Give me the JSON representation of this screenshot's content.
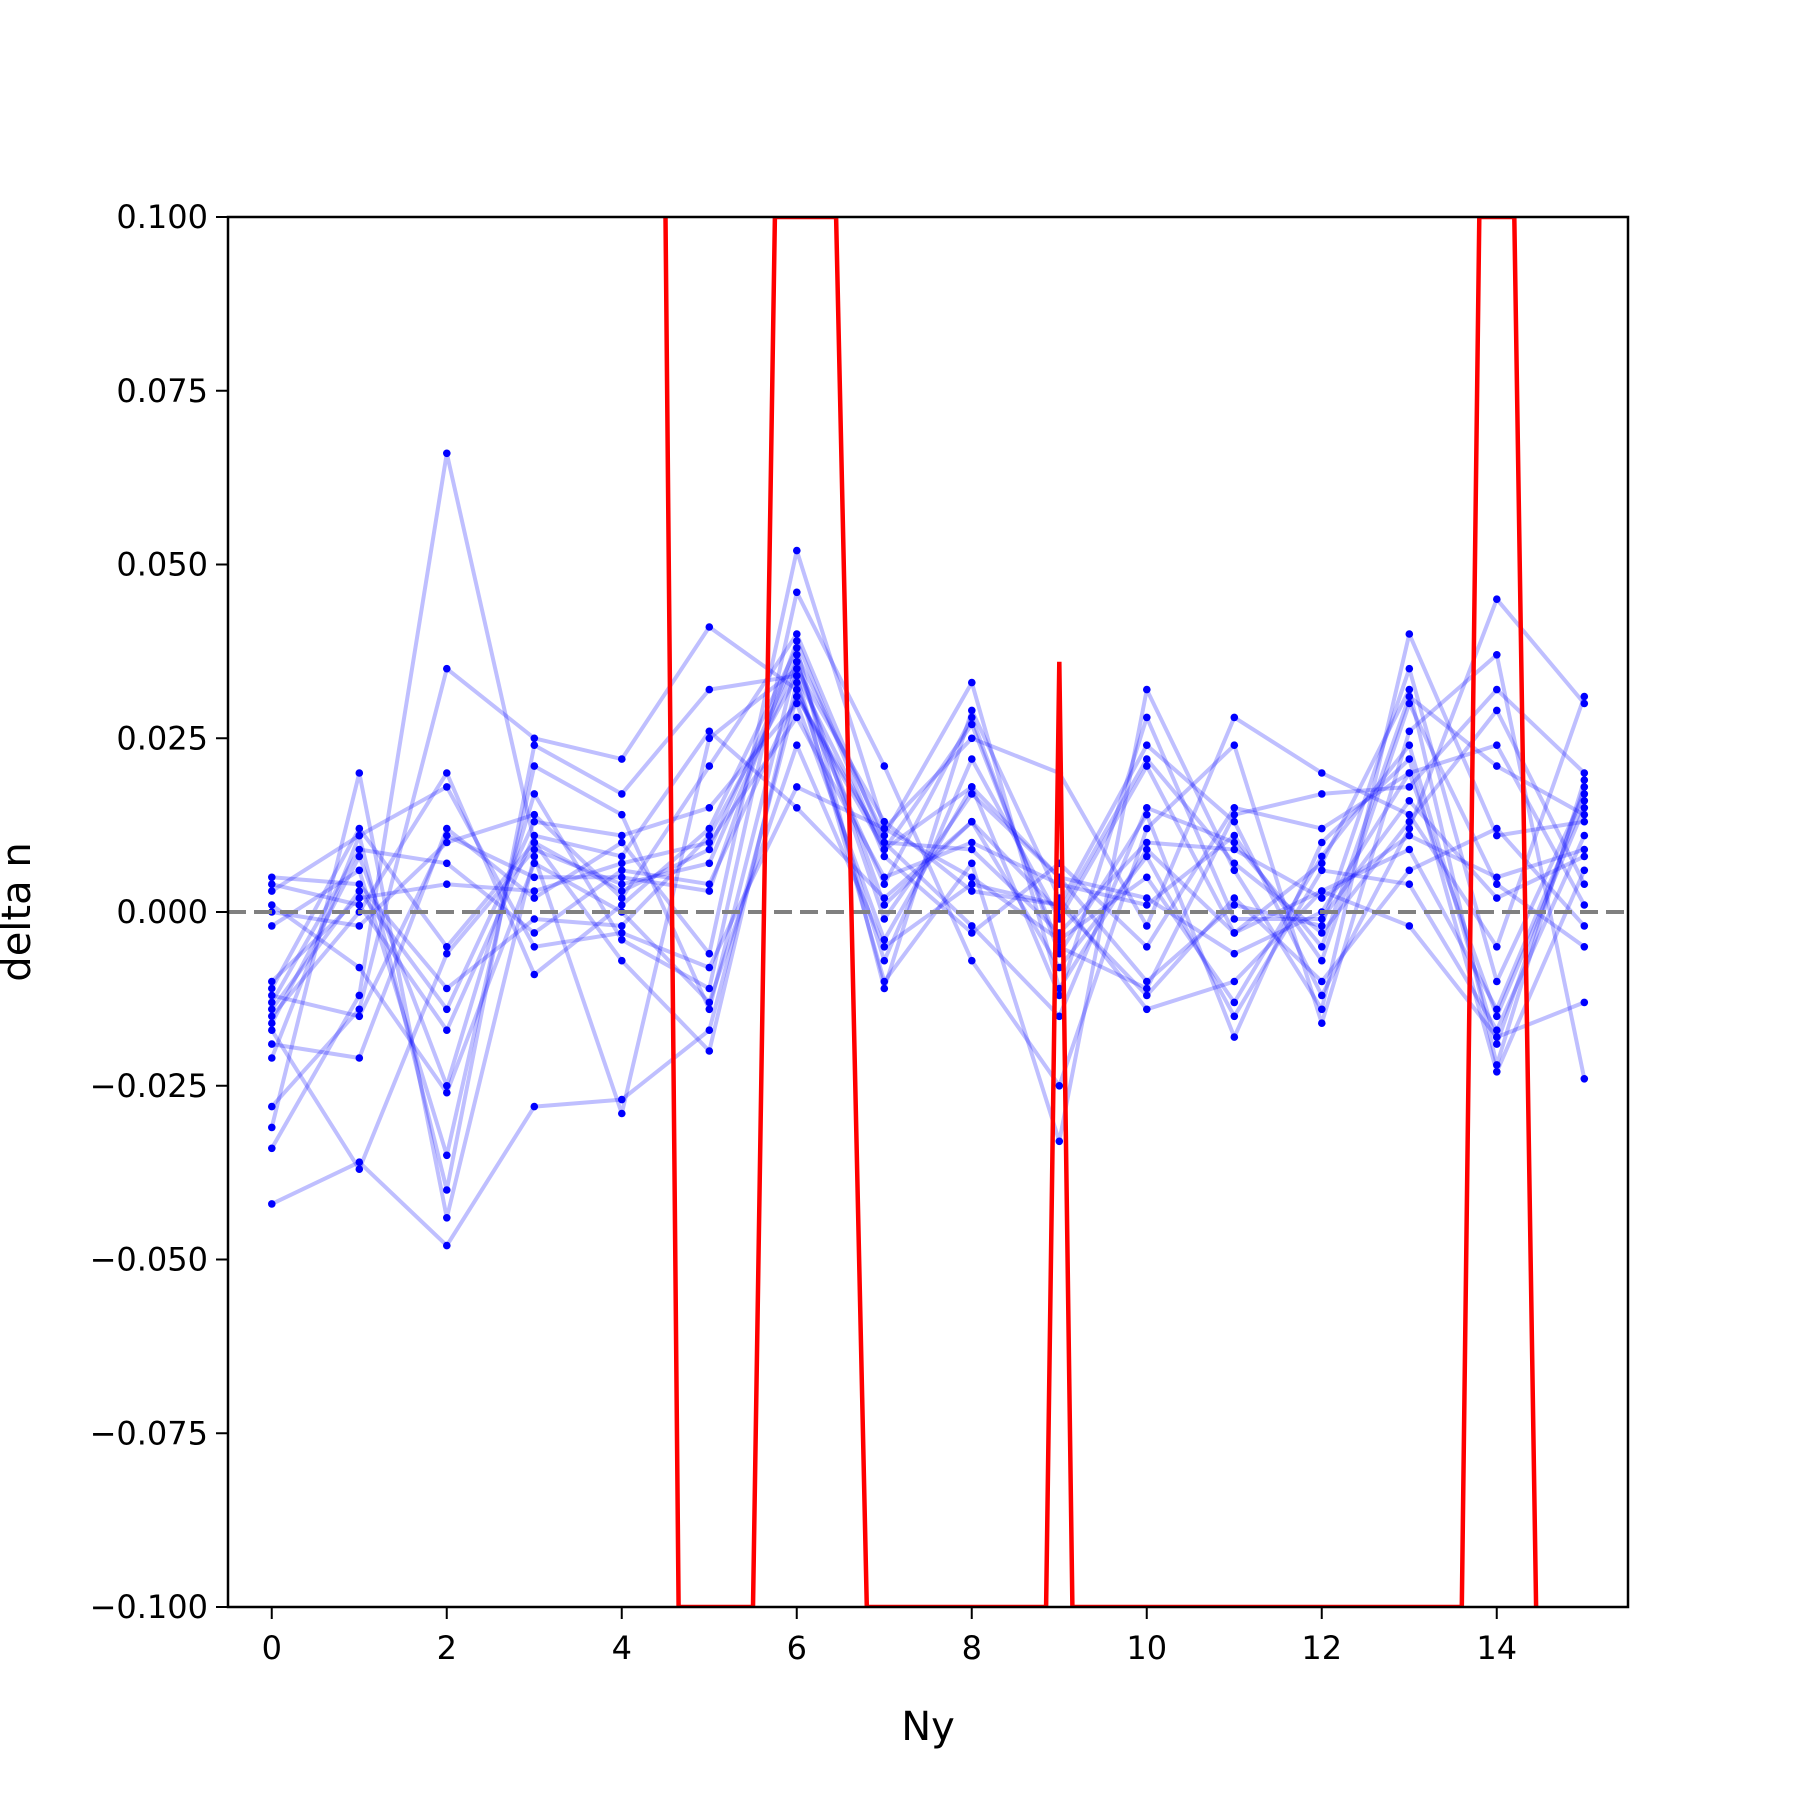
{
  "chart_data": {
    "type": "line",
    "title": "",
    "xlabel": "Ny",
    "ylabel": "delta n",
    "xlim": [
      -0.5,
      15.5
    ],
    "ylim": [
      -0.1,
      0.1
    ],
    "xticks": [
      0,
      2,
      4,
      6,
      8,
      10,
      12,
      14
    ],
    "xtick_labels": [
      "0",
      "2",
      "4",
      "6",
      "8",
      "10",
      "12",
      "14"
    ],
    "yticks": [
      -0.1,
      -0.075,
      -0.05,
      -0.025,
      0,
      0.025,
      0.05,
      0.075,
      0.1
    ],
    "ytick_labels": [
      "−0.100",
      "−0.075",
      "−0.050",
      "−0.025",
      "0.000",
      "0.025",
      "0.050",
      "0.075",
      "0.100"
    ],
    "reference_line": {
      "y": 0,
      "style": "dashed",
      "color": "#808080"
    },
    "colors": {
      "series": "#0000ff",
      "mean": "#ff0000",
      "reference": "#808080"
    },
    "series_x": [
      0,
      1,
      2,
      3,
      4,
      5,
      6,
      7,
      8,
      9,
      10,
      11,
      12,
      13,
      14,
      15
    ],
    "series": [
      {
        "values": [
          -0.042,
          -0.036,
          -0.048,
          -0.028,
          -0.027,
          -0.017,
          0.031,
          0.009,
          0.018,
          0.005,
          -0.01,
          0.001,
          -0.002,
          0.035,
          -0.01,
          0.017
        ]
      },
      {
        "values": [
          -0.034,
          -0.012,
          0.066,
          0.01,
          0.003,
          0.009,
          0.037,
          0.011,
          0.033,
          -0.011,
          0.009,
          -0.003,
          0.007,
          0.032,
          -0.022,
          0.019
        ]
      },
      {
        "values": [
          -0.031,
          0.02,
          -0.044,
          0.008,
          -0.029,
          0.025,
          0.035,
          0.013,
          0.003,
          0.001,
          0.024,
          0.013,
          -0.012,
          0.012,
          0.045,
          0.03
        ]
      },
      {
        "values": [
          -0.028,
          -0.014,
          0.035,
          0.025,
          0.022,
          0.041,
          0.032,
          0.004,
          0.028,
          -0.006,
          0.014,
          -0.018,
          0.01,
          0.022,
          -0.023,
          0.006
        ]
      },
      {
        "values": [
          -0.021,
          0.011,
          -0.04,
          0.024,
          0.017,
          0.032,
          0.034,
          -0.01,
          0.007,
          -0.033,
          0.032,
          0.006,
          -0.014,
          0.04,
          0.011,
          0.013
        ]
      },
      {
        "values": [
          -0.019,
          -0.021,
          0.012,
          0.002,
          0.01,
          -0.006,
          0.052,
          0.012,
          0.025,
          0.02,
          -0.002,
          0.028,
          0.02,
          0.014,
          -0.005,
          0.031
        ]
      },
      {
        "values": [
          -0.016,
          0.008,
          -0.025,
          0.017,
          -0.004,
          -0.011,
          0.046,
          0.021,
          -0.007,
          -0.025,
          0.012,
          0.024,
          -0.016,
          0.026,
          0.037,
          -0.024
        ]
      },
      {
        "values": [
          -0.015,
          0.0,
          0.02,
          -0.009,
          0.001,
          0.012,
          0.038,
          -0.011,
          0.029,
          0.002,
          -0.014,
          -0.01,
          0.003,
          -0.002,
          -0.018,
          -0.013
        ]
      },
      {
        "values": [
          -0.014,
          0.003,
          -0.014,
          0.013,
          0.011,
          0.015,
          0.03,
          -0.004,
          0.018,
          -0.012,
          0.028,
          -0.001,
          -0.001,
          0.016,
          0.002,
          0.008
        ]
      },
      {
        "values": [
          -0.012,
          -0.015,
          0.011,
          0.005,
          0.005,
          0.003,
          0.039,
          0.008,
          -0.003,
          0.007,
          -0.005,
          0.015,
          0.012,
          0.02,
          0.024,
          0.001
        ]
      },
      {
        "values": [
          -0.011,
          0.012,
          -0.005,
          0.01,
          -0.007,
          -0.02,
          0.033,
          -0.007,
          0.022,
          -0.001,
          0.021,
          -0.003,
          0.003,
          0.009,
          -0.014,
          0.016
        ]
      },
      {
        "values": [
          -0.01,
          0.002,
          0.004,
          0.003,
          0.007,
          0.01,
          0.028,
          0.005,
          0.01,
          0.004,
          0.001,
          0.011,
          -0.007,
          0.03,
          0.004,
          -0.005
        ]
      },
      {
        "values": [
          -0.002,
          0.006,
          -0.035,
          0.021,
          0.014,
          -0.014,
          0.036,
          0.001,
          0.013,
          -0.008,
          0.008,
          -0.015,
          0.006,
          0.004,
          -0.017,
          0.011
        ]
      },
      {
        "values": [
          0.0,
          -0.002,
          0.01,
          0.014,
          0.002,
          0.021,
          0.04,
          0.01,
          -0.002,
          -0.015,
          0.015,
          0.01,
          -0.005,
          0.031,
          0.021,
          0.014
        ]
      },
      {
        "values": [
          0.001,
          -0.008,
          -0.026,
          0.007,
          0.0,
          -0.013,
          0.024,
          -0.005,
          0.004,
          0.001,
          -0.012,
          0.002,
          -0.01,
          0.006,
          0.012,
          -0.002
        ]
      },
      {
        "values": [
          0.003,
          0.011,
          0.018,
          -0.005,
          -0.003,
          -0.008,
          0.018,
          0.012,
          0.005,
          -0.004,
          0.005,
          -0.013,
          0.008,
          0.024,
          -0.019,
          0.018
        ]
      },
      {
        "values": [
          0.004,
          0.001,
          -0.017,
          0.011,
          0.008,
          0.026,
          0.015,
          0.002,
          0.013,
          0.0,
          0.022,
          0.007,
          -0.003,
          0.013,
          0.029,
          0.004
        ]
      },
      {
        "values": [
          0.005,
          0.004,
          -0.011,
          -0.001,
          -0.002,
          0.011,
          0.034,
          0.009,
          0.027,
          -0.005,
          -0.011,
          0.014,
          0.017,
          0.018,
          0.032,
          0.02
        ]
      },
      {
        "values": [
          -0.017,
          -0.037,
          -0.006,
          0.009,
          0.004,
          0.007,
          0.036,
          -0.001,
          0.017,
          0.005,
          0.002,
          -0.006,
          0.0,
          0.02,
          -0.015,
          0.015
        ]
      },
      {
        "values": [
          -0.013,
          0.009,
          0.007,
          -0.003,
          0.006,
          0.004,
          0.031,
          0.01,
          0.009,
          -0.003,
          0.01,
          0.009,
          0.002,
          0.011,
          0.005,
          0.009
        ]
      }
    ],
    "mean_line": {
      "x": [
        4.5,
        4.65,
        5.5,
        5.75,
        6.45,
        6.8,
        8.85,
        9.0,
        9.15,
        13.6,
        13.8,
        14.2,
        14.45
      ],
      "y": [
        0.1,
        -0.1,
        -0.1,
        0.1,
        0.1,
        -0.1,
        -0.1,
        0.036,
        -0.1,
        -0.1,
        0.1,
        0.1,
        -0.1
      ]
    }
  }
}
